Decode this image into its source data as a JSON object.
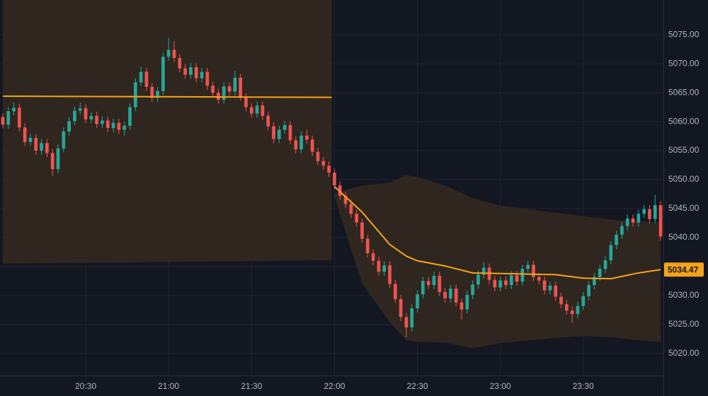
{
  "chart_data": {
    "type": "candlestick",
    "colors": {
      "up": "#26a69a",
      "down": "#ef5350",
      "line": "#f7a21b",
      "band": "#2f271f",
      "grid": "#1f2431",
      "background": "#131722"
    },
    "xlim": [
      "19:59",
      "23:59"
    ],
    "xticks": [
      "20:30",
      "21:00",
      "21:30",
      "22:00",
      "22:30",
      "23:00",
      "23:30"
    ],
    "ylim": [
      5016.2,
      5081
    ],
    "yticks": [
      {
        "value": 5020,
        "label": "5020.00"
      },
      {
        "value": 5025,
        "label": "5025.00"
      },
      {
        "value": 5030,
        "label": "5030.00"
      },
      {
        "value": 5035,
        "label": "5035.00"
      },
      {
        "value": 5040,
        "label": "5040.00"
      },
      {
        "value": 5045,
        "label": "5045.00"
      },
      {
        "value": 5050,
        "label": "5050.00"
      },
      {
        "value": 5055,
        "label": "5055.00"
      },
      {
        "value": 5060,
        "label": "5060.00"
      },
      {
        "value": 5065,
        "label": "5065.00"
      },
      {
        "value": 5070,
        "label": "5070.00"
      },
      {
        "value": 5075,
        "label": "5075.00"
      }
    ],
    "grid": true,
    "x": [
      "20:00",
      "20:02",
      "20:04",
      "20:06",
      "20:08",
      "20:10",
      "20:12",
      "20:14",
      "20:16",
      "20:18",
      "20:20",
      "20:22",
      "20:24",
      "20:26",
      "20:28",
      "20:30",
      "20:32",
      "20:34",
      "20:36",
      "20:38",
      "20:40",
      "20:42",
      "20:44",
      "20:46",
      "20:48",
      "20:50",
      "20:52",
      "20:54",
      "20:56",
      "20:58",
      "21:00",
      "21:02",
      "21:04",
      "21:06",
      "21:08",
      "21:10",
      "21:12",
      "21:14",
      "21:16",
      "21:18",
      "21:20",
      "21:22",
      "21:24",
      "21:26",
      "21:28",
      "21:30",
      "21:32",
      "21:34",
      "21:36",
      "21:38",
      "21:40",
      "21:42",
      "21:44",
      "21:46",
      "21:48",
      "21:50",
      "21:52",
      "21:54",
      "21:56",
      "21:58",
      "22:00",
      "22:02",
      "22:04",
      "22:06",
      "22:08",
      "22:10",
      "22:12",
      "22:14",
      "22:16",
      "22:18",
      "22:20",
      "22:22",
      "22:24",
      "22:26",
      "22:28",
      "22:30",
      "22:32",
      "22:34",
      "22:36",
      "22:38",
      "22:40",
      "22:42",
      "22:44",
      "22:46",
      "22:48",
      "22:50",
      "22:52",
      "22:54",
      "22:56",
      "22:58",
      "23:00",
      "23:02",
      "23:04",
      "23:06",
      "23:08",
      "23:10",
      "23:12",
      "23:14",
      "23:16",
      "23:18",
      "23:20",
      "23:22",
      "23:24",
      "23:26",
      "23:28",
      "23:30",
      "23:32",
      "23:34",
      "23:36",
      "23:38",
      "23:40",
      "23:42",
      "23:44",
      "23:46",
      "23:48",
      "23:50",
      "23:52",
      "23:54",
      "23:56",
      "23:58"
    ],
    "candles": [
      [
        5060.8,
        5061.5,
        5058.8,
        5059.5
      ],
      [
        5059.5,
        5062.5,
        5058.8,
        5061.8
      ],
      [
        5061.8,
        5063.4,
        5061.1,
        5062.4
      ],
      [
        5062.4,
        5063.1,
        5058.3,
        5059.0
      ],
      [
        5059.0,
        5059.7,
        5055.8,
        5056.5
      ],
      [
        5056.5,
        5057.9,
        5055.8,
        5057.2
      ],
      [
        5057.2,
        5057.9,
        5054.3,
        5055.0
      ],
      [
        5055.0,
        5057.0,
        5054.3,
        5056.3
      ],
      [
        5056.3,
        5057.0,
        5053.9,
        5054.6
      ],
      [
        5054.6,
        5055.3,
        5050.6,
        5051.8
      ],
      [
        5051.8,
        5056.1,
        5051.1,
        5055.4
      ],
      [
        5055.4,
        5059.0,
        5054.7,
        5058.3
      ],
      [
        5058.3,
        5060.8,
        5057.6,
        5060.1
      ],
      [
        5060.1,
        5062.6,
        5059.4,
        5061.9
      ],
      [
        5061.9,
        5063.3,
        5061.2,
        5062.3
      ],
      [
        5062.3,
        5063.0,
        5059.7,
        5060.4
      ],
      [
        5060.4,
        5061.7,
        5059.7,
        5061.0
      ],
      [
        5061.0,
        5061.7,
        5058.9,
        5059.6
      ],
      [
        5059.6,
        5060.9,
        5058.9,
        5060.2
      ],
      [
        5060.2,
        5060.9,
        5058.2,
        5058.9
      ],
      [
        5058.9,
        5060.5,
        5058.2,
        5059.8
      ],
      [
        5059.8,
        5060.5,
        5057.9,
        5058.6
      ],
      [
        5058.6,
        5060.0,
        5057.6,
        5059.3
      ],
      [
        5059.3,
        5063.2,
        5058.6,
        5062.5
      ],
      [
        5062.5,
        5067.5,
        5061.8,
        5066.8
      ],
      [
        5066.8,
        5069.5,
        5066.1,
        5068.6
      ],
      [
        5068.6,
        5069.3,
        5065.3,
        5066.0
      ],
      [
        5066.0,
        5066.7,
        5063.4,
        5064.1
      ],
      [
        5064.1,
        5066.0,
        5063.4,
        5065.3
      ],
      [
        5065.3,
        5071.9,
        5064.6,
        5071.2
      ],
      [
        5071.2,
        5074.4,
        5070.5,
        5072.4
      ],
      [
        5072.4,
        5073.9,
        5070.3,
        5071.0
      ],
      [
        5071.0,
        5071.7,
        5068.5,
        5069.2
      ],
      [
        5069.2,
        5069.9,
        5067.4,
        5068.1
      ],
      [
        5068.1,
        5070.1,
        5067.4,
        5069.4
      ],
      [
        5069.4,
        5070.1,
        5066.8,
        5067.5
      ],
      [
        5067.5,
        5069.3,
        5066.8,
        5068.6
      ],
      [
        5068.6,
        5069.3,
        5065.5,
        5066.2
      ],
      [
        5066.2,
        5066.9,
        5064.3,
        5065.0
      ],
      [
        5065.0,
        5065.7,
        5063.1,
        5063.8
      ],
      [
        5063.8,
        5066.8,
        5063.1,
        5066.1
      ],
      [
        5066.1,
        5066.8,
        5064.5,
        5065.2
      ],
      [
        5065.2,
        5068.8,
        5064.5,
        5067.6
      ],
      [
        5067.6,
        5068.3,
        5063.6,
        5064.3
      ],
      [
        5064.3,
        5065.0,
        5061.8,
        5062.5
      ],
      [
        5062.5,
        5063.2,
        5060.7,
        5061.4
      ],
      [
        5061.4,
        5063.5,
        5060.7,
        5062.8
      ],
      [
        5062.8,
        5063.5,
        5060.3,
        5061.0
      ],
      [
        5061.0,
        5061.7,
        5058.5,
        5059.2
      ],
      [
        5059.2,
        5059.9,
        5056.3,
        5057.0
      ],
      [
        5057.0,
        5059.3,
        5056.3,
        5058.6
      ],
      [
        5058.6,
        5060.1,
        5057.9,
        5059.4
      ],
      [
        5059.4,
        5060.1,
        5056.1,
        5056.8
      ],
      [
        5056.8,
        5057.5,
        5054.5,
        5055.2
      ],
      [
        5055.2,
        5058.3,
        5054.5,
        5057.6
      ],
      [
        5057.6,
        5058.6,
        5056.2,
        5056.9
      ],
      [
        5056.9,
        5057.6,
        5054.1,
        5054.8
      ],
      [
        5054.8,
        5055.5,
        5052.5,
        5053.2
      ],
      [
        5053.2,
        5053.9,
        5051.7,
        5052.4
      ],
      [
        5052.4,
        5053.1,
        5050.5,
        5051.2
      ],
      [
        5051.2,
        5051.9,
        5048.3,
        5049.0
      ],
      [
        5049.0,
        5049.7,
        5046.5,
        5047.2
      ],
      [
        5047.2,
        5047.9,
        5045.1,
        5045.8
      ],
      [
        5045.8,
        5046.5,
        5043.4,
        5044.1
      ],
      [
        5044.1,
        5044.8,
        5041.9,
        5042.6
      ],
      [
        5042.6,
        5043.3,
        5039.1,
        5039.8
      ],
      [
        5039.8,
        5040.5,
        5036.6,
        5037.3
      ],
      [
        5037.3,
        5038.0,
        5035.3,
        5036.0
      ],
      [
        5036.0,
        5036.7,
        5033.4,
        5034.1
      ],
      [
        5034.1,
        5035.9,
        5033.4,
        5035.2
      ],
      [
        5035.2,
        5035.9,
        5031.3,
        5032.0
      ],
      [
        5032.0,
        5032.7,
        5028.7,
        5029.4
      ],
      [
        5029.4,
        5030.1,
        5025.6,
        5026.3
      ],
      [
        5026.3,
        5027.0,
        5022.8,
        5024.5
      ],
      [
        5024.5,
        5028.5,
        5023.8,
        5027.8
      ],
      [
        5027.8,
        5030.9,
        5027.1,
        5030.2
      ],
      [
        5030.2,
        5033.2,
        5029.5,
        5032.5
      ],
      [
        5032.5,
        5033.2,
        5031.1,
        5031.8
      ],
      [
        5031.8,
        5034.1,
        5031.1,
        5033.4
      ],
      [
        5033.4,
        5034.1,
        5029.9,
        5030.6
      ],
      [
        5030.6,
        5031.3,
        5028.8,
        5029.5
      ],
      [
        5029.5,
        5031.9,
        5028.8,
        5031.2
      ],
      [
        5031.2,
        5031.9,
        5028.1,
        5028.8
      ],
      [
        5028.8,
        5029.5,
        5025.9,
        5027.6
      ],
      [
        5027.6,
        5030.8,
        5026.9,
        5030.1
      ],
      [
        5030.1,
        5032.6,
        5029.4,
        5031.9
      ],
      [
        5031.9,
        5034.3,
        5031.2,
        5033.6
      ],
      [
        5033.6,
        5035.8,
        5032.9,
        5034.8
      ],
      [
        5034.8,
        5035.5,
        5032.0,
        5032.7
      ],
      [
        5032.7,
        5033.4,
        5030.7,
        5031.4
      ],
      [
        5031.4,
        5033.3,
        5030.7,
        5032.6
      ],
      [
        5032.6,
        5033.3,
        5031.1,
        5031.8
      ],
      [
        5031.8,
        5034.2,
        5031.1,
        5033.5
      ],
      [
        5033.5,
        5034.2,
        5031.7,
        5032.4
      ],
      [
        5032.4,
        5035.3,
        5031.7,
        5034.6
      ],
      [
        5034.6,
        5036.0,
        5033.9,
        5035.3
      ],
      [
        5035.3,
        5036.0,
        5032.5,
        5033.2
      ],
      [
        5033.2,
        5033.9,
        5031.9,
        5032.6
      ],
      [
        5032.6,
        5033.3,
        5030.2,
        5030.9
      ],
      [
        5030.9,
        5032.4,
        5030.2,
        5031.7
      ],
      [
        5031.7,
        5032.4,
        5029.1,
        5029.8
      ],
      [
        5029.8,
        5030.5,
        5027.8,
        5028.5
      ],
      [
        5028.5,
        5029.2,
        5026.7,
        5027.4
      ],
      [
        5027.4,
        5028.1,
        5025.3,
        5026.8
      ],
      [
        5026.8,
        5028.9,
        5026.1,
        5028.2
      ],
      [
        5028.2,
        5030.6,
        5027.5,
        5029.9
      ],
      [
        5029.9,
        5032.5,
        5029.2,
        5031.8
      ],
      [
        5031.8,
        5033.9,
        5031.1,
        5033.2
      ],
      [
        5033.2,
        5035.3,
        5032.5,
        5034.6
      ],
      [
        5034.6,
        5036.8,
        5033.9,
        5036.1
      ],
      [
        5036.1,
        5039.4,
        5035.4,
        5038.7
      ],
      [
        5038.7,
        5041.2,
        5038.0,
        5040.5
      ],
      [
        5040.5,
        5042.7,
        5039.8,
        5042.0
      ],
      [
        5042.0,
        5044.0,
        5041.3,
        5043.3
      ],
      [
        5043.3,
        5044.0,
        5041.9,
        5042.6
      ],
      [
        5042.6,
        5044.8,
        5041.9,
        5044.1
      ],
      [
        5044.1,
        5045.6,
        5043.4,
        5044.9
      ],
      [
        5044.9,
        5045.6,
        5042.5,
        5043.2
      ],
      [
        5043.2,
        5047.4,
        5042.5,
        5045.6
      ],
      [
        5045.6,
        5046.3,
        5039.5,
        5040.2
      ]
    ],
    "sessions": [
      {
        "x": [
          "20:00",
          "21:59"
        ],
        "line": [
          5064.4,
          5064.2
        ],
        "upper": [
          5090,
          5090
        ],
        "lower": [
          5035.5,
          5036.1
        ]
      },
      {
        "x": [
          "22:00",
          "22:10",
          "22:20",
          "22:26",
          "22:30",
          "22:40",
          "22:50",
          "23:00",
          "23:20",
          "23:30",
          "23:40",
          "23:50",
          "23:58"
        ],
        "line": [
          5048.8,
          5044.4,
          5038.8,
          5036.8,
          5036.0,
          5035.1,
          5033.9,
          5033.8,
          5033.6,
          5033.0,
          5032.9,
          5033.9,
          5034.47
        ],
        "upper": [
          5047.7,
          5049.0,
          5049.5,
          5050.8,
          5050.4,
          5049.0,
          5046.8,
          5045.5,
          5044.3,
          5043.7,
          5043.1,
          5042.8,
          5042.6
        ],
        "lower": [
          5047.0,
          5032.1,
          5025.4,
          5022.3,
          5022.0,
          5021.9,
          5020.9,
          5021.8,
          5022.7,
          5023.0,
          5022.8,
          5022.3,
          5022.0
        ]
      }
    ]
  }
}
